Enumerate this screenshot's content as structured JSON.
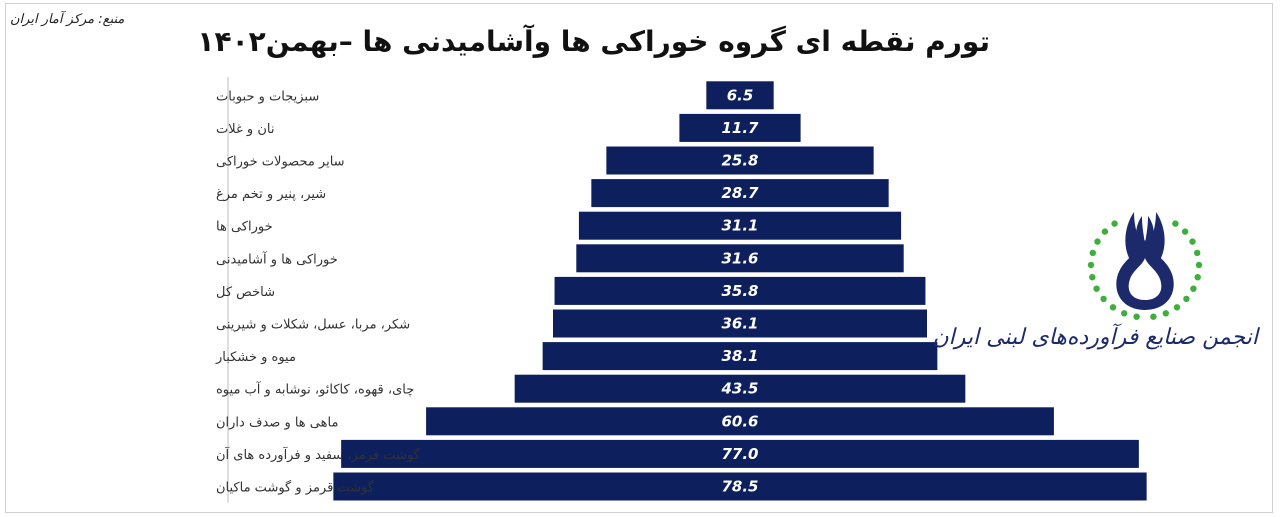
{
  "source_text": "منبع: مرکز آمار ایران",
  "logo_text": "انجمن صنایع فرآورده‌های لبنی ایران",
  "colors": {
    "bar": "#0d1f5c",
    "value_text": "#ffffff",
    "category_text": "#333333",
    "axis": "#bfbfbf"
  },
  "chart_data": {
    "type": "bar",
    "orientation": "horizontal-centered",
    "title": "تورم نقطه ای گروه خوراکی ها وآشامیدنی ها –بهمن۱۴۰۲",
    "categories": [
      "سبزیجات و حبوبات",
      "نان و غلات",
      "سایر محصولات خوراکی",
      "شیر، پنیر و تخم مرغ",
      "خوراکی ها",
      "خوراکی ها و  آشامیدنی",
      "شاخص کل",
      "شکر، مربا، عسل، شکلات و شیرینی",
      "میوه و خشکبار",
      "چای، قهوه، کاکائو، نوشابه و آب میوه",
      "ماهی ها و صدف داران",
      "گوشت قرمز، سفید و فرآورده های آن",
      "گوشت قرمز و گوشت ماکیان"
    ],
    "values": [
      6.5,
      11.7,
      25.8,
      28.7,
      31.1,
      31.6,
      35.8,
      36.1,
      38.1,
      43.5,
      60.6,
      77.0,
      78.5
    ],
    "value_labels": [
      "6.5",
      "11.7",
      "25.8",
      "28.7",
      "31.1",
      "31.6",
      "35.8",
      "36.1",
      "38.1",
      "43.5",
      "60.6",
      "77.0",
      "78.5"
    ],
    "grid": false,
    "legend": "none"
  }
}
